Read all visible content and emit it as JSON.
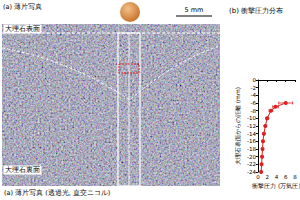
{
  "panel_a": {
    "title": "(a) 薄片写真",
    "scale_bar": "5 mm",
    "top_label": "大理石表面",
    "bottom_label": "大理石裏面",
    "caption": "(a) 薄片写真 (透過光, 直交ニコル)"
  },
  "chart_data": {
    "type": "line",
    "title": "(b) 衝撃圧力分布",
    "x_label": "衝撃圧力 (万気圧)",
    "y_label": "大理石表面からの距離 (mm)",
    "series": [
      {
        "color": "#e02020",
        "marker": "circle",
        "x": [
          6,
          3.8,
          2.8,
          2,
          1.6,
          1.3,
          1.1,
          1,
          0.9,
          0.8,
          0.7
        ],
        "values": [
          -6,
          -7,
          -8,
          -10,
          -12,
          -14,
          -16,
          -18,
          -20,
          -22,
          -24
        ],
        "xerr": [
          1.5,
          0.6,
          0.4,
          0.3,
          0.2,
          0.2,
          0.2,
          0.2,
          0.2,
          0.2,
          0.2
        ]
      }
    ],
    "xlim": [
      0,
      8
    ],
    "xticks": [
      0,
      2,
      4,
      6,
      8
    ],
    "ylim": [
      -24,
      0
    ],
    "yticks": [
      -24,
      -22,
      -20,
      -18,
      -16,
      -14,
      -12,
      -10,
      -8,
      -6,
      -4,
      -2,
      0
    ],
    "grid": false
  }
}
